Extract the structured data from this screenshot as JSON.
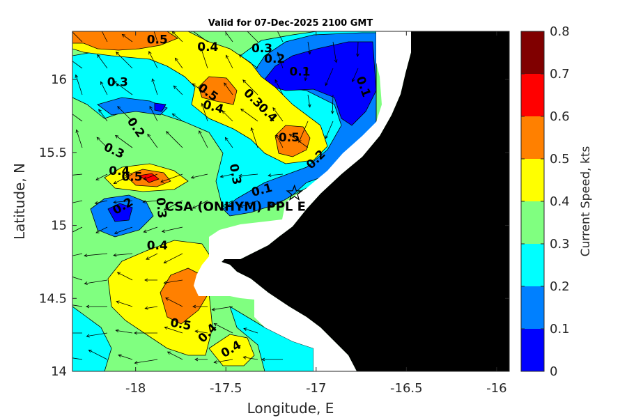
{
  "chart_data": {
    "type": "heatmap",
    "title": "Valid for 07-Dec-2025 2100 GMT",
    "xlabel": "Longitude, E",
    "ylabel": "Latitude, N",
    "xlim": [
      -18.35,
      -15.93
    ],
    "ylim": [
      14.0,
      16.33
    ],
    "xticks": [
      -18,
      -17.5,
      -17,
      -16.5,
      -16
    ],
    "xtick_labels": [
      "-18",
      "-17.5",
      "-17",
      "-16.5",
      "-16"
    ],
    "yticks": [
      14,
      14.5,
      15,
      15.5,
      16
    ],
    "ytick_labels": [
      "14",
      "14.5",
      "15",
      "15.5",
      "16"
    ],
    "colorbar": {
      "label": "Current Speed, kts",
      "range": [
        0,
        0.8
      ],
      "ticks": [
        0,
        0.1,
        0.2,
        0.3,
        0.4,
        0.5,
        0.6,
        0.7,
        0.8
      ],
      "tick_labels": [
        "0",
        "0.1",
        "0.2",
        "0.3",
        "0.4",
        "0.5",
        "0.6",
        "0.7",
        "0.8"
      ],
      "colors": [
        "#0000ff",
        "#0080ff",
        "#00ffff",
        "#80ff80",
        "#ffff00",
        "#ff8000",
        "#ff0000",
        "#800000"
      ]
    },
    "site": {
      "name": "CSA (ONHYM) PPL E",
      "lon": -17.12,
      "lat": 15.22
    },
    "contour_labels": [
      {
        "text": "0.5",
        "lon": -17.88,
        "lat": 16.27,
        "rot": 0
      },
      {
        "text": "0.4",
        "lon": -17.6,
        "lat": 16.22,
        "rot": 0
      },
      {
        "text": "0.3",
        "lon": -17.3,
        "lat": 16.21,
        "rot": 0
      },
      {
        "text": "0.2",
        "lon": -17.23,
        "lat": 16.14,
        "rot": 0
      },
      {
        "text": "0.1",
        "lon": -17.09,
        "lat": 16.05,
        "rot": 0
      },
      {
        "text": "0.1",
        "lon": -16.74,
        "lat": 15.95,
        "rot": 70
      },
      {
        "text": "0.3",
        "lon": -18.1,
        "lat": 15.98,
        "rot": 0
      },
      {
        "text": "0.5",
        "lon": -17.6,
        "lat": 15.91,
        "rot": 35
      },
      {
        "text": "0.4",
        "lon": -17.57,
        "lat": 15.81,
        "rot": 15
      },
      {
        "text": "0.3",
        "lon": -17.35,
        "lat": 15.87,
        "rot": 45
      },
      {
        "text": "0.4",
        "lon": -17.27,
        "lat": 15.77,
        "rot": 45
      },
      {
        "text": "0.5",
        "lon": -17.15,
        "lat": 15.6,
        "rot": 0
      },
      {
        "text": "0.2",
        "lon": -17.0,
        "lat": 15.45,
        "rot": -45
      },
      {
        "text": "0.2",
        "lon": -18.0,
        "lat": 15.67,
        "rot": 55
      },
      {
        "text": "0.3",
        "lon": -18.12,
        "lat": 15.51,
        "rot": 25
      },
      {
        "text": "0.4",
        "lon": -18.09,
        "lat": 15.37,
        "rot": 0
      },
      {
        "text": "0.5",
        "lon": -18.02,
        "lat": 15.33,
        "rot": 0
      },
      {
        "text": "0.3",
        "lon": -17.45,
        "lat": 15.35,
        "rot": 80
      },
      {
        "text": "0.1",
        "lon": -17.3,
        "lat": 15.24,
        "rot": -15
      },
      {
        "text": "0.2",
        "lon": -18.07,
        "lat": 15.13,
        "rot": -30
      },
      {
        "text": "0.3",
        "lon": -17.86,
        "lat": 15.12,
        "rot": 85
      },
      {
        "text": "0.4",
        "lon": -17.88,
        "lat": 14.86,
        "rot": 0
      },
      {
        "text": "0.5",
        "lon": -17.75,
        "lat": 14.32,
        "rot": 10
      },
      {
        "text": "0.4",
        "lon": -17.6,
        "lat": 14.26,
        "rot": -45
      },
      {
        "text": "0.4",
        "lon": -17.47,
        "lat": 14.15,
        "rot": -30
      }
    ]
  }
}
